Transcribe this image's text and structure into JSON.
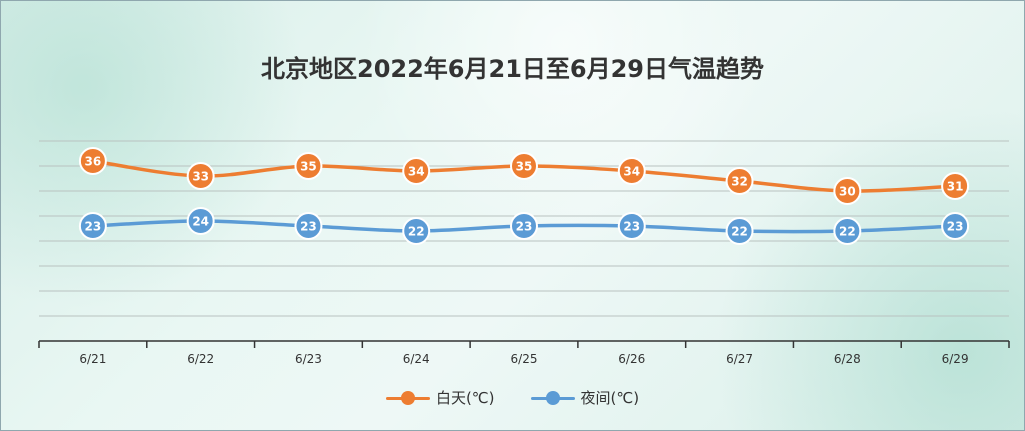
{
  "chart_data": {
    "type": "line",
    "title": "北京地区2022年6月21日至6月29日气温趋势",
    "categories": [
      "6/21",
      "6/22",
      "6/23",
      "6/24",
      "6/25",
      "6/26",
      "6/27",
      "6/28",
      "6/29"
    ],
    "series": [
      {
        "name": "白天(℃)",
        "color": "#ed7d31",
        "values": [
          36,
          33,
          35,
          34,
          35,
          34,
          32,
          30,
          31
        ]
      },
      {
        "name": "夜间(℃)",
        "color": "#5b9bd5",
        "values": [
          23,
          24,
          23,
          22,
          23,
          23,
          22,
          22,
          23
        ]
      }
    ],
    "ylim": [
      0,
      40
    ],
    "grid": true,
    "legend": "bottom",
    "data_labels": true
  }
}
